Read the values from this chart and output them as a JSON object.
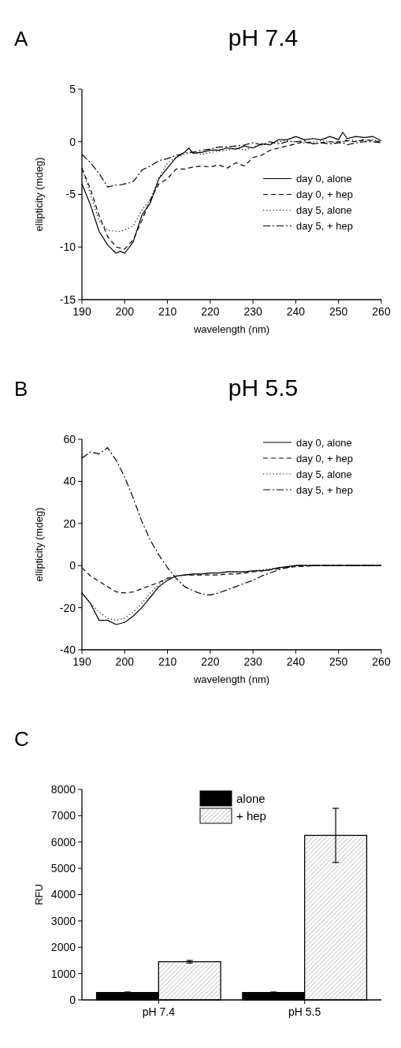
{
  "chart_data": [
    {
      "type": "line",
      "title": "pH 7.4",
      "xlabel": "wavelength (nm)",
      "ylabel": "ellipticity (mdeg)",
      "annotations": [
        "A"
      ],
      "x": [
        190,
        192,
        194,
        196,
        198,
        199,
        200,
        202,
        204,
        206,
        208,
        210,
        212,
        214,
        215,
        216,
        218,
        220,
        222,
        224,
        226,
        228,
        230,
        232,
        234,
        236,
        238,
        240,
        242,
        244,
        246,
        248,
        250,
        251,
        252,
        254,
        256,
        258,
        260
      ],
      "xlim": [
        190,
        260
      ],
      "xticks": [
        190,
        200,
        210,
        220,
        230,
        240,
        250,
        260
      ],
      "ylim": [
        -15,
        5
      ],
      "yticks": [
        -15,
        -10,
        -5,
        0,
        5
      ],
      "legend": "right",
      "marker": "none",
      "series": [
        {
          "name": "day 0, alone",
          "color": "#000000",
          "line_style": "solid",
          "values": [
            -4,
            -6,
            -8.5,
            -9.8,
            -10.6,
            -10.4,
            -10.6,
            -9.5,
            -7,
            -5.8,
            -3.5,
            -2.5,
            -1.5,
            -1,
            -0.6,
            -1.1,
            -1,
            -0.8,
            -0.8,
            -0.6,
            -0.7,
            -0.4,
            -0.6,
            -0.2,
            -0.3,
            0.2,
            0.2,
            0.5,
            0.2,
            0.3,
            0.2,
            0.5,
            0.2,
            0.9,
            0.3,
            0.5,
            0.4,
            0.5,
            0.1
          ]
        },
        {
          "name": "day 0, + hep",
          "color": "#000000",
          "line_style": "dashed",
          "values": [
            -2.5,
            -4.5,
            -7,
            -9,
            -10,
            -10.1,
            -10.2,
            -9.3,
            -7.5,
            -5.5,
            -4,
            -3.5,
            -2.6,
            -2.6,
            -2.5,
            -2.4,
            -2.3,
            -2.4,
            -2.2,
            -2.5,
            -2,
            -2.3,
            -1.5,
            -1.3,
            -0.8,
            -0.6,
            -0.4,
            -0.2,
            0,
            -0.2,
            -0.1,
            0,
            0,
            0,
            0.1,
            0,
            0.2,
            0.1,
            0
          ]
        },
        {
          "name": "day 5, alone",
          "color": "#000000",
          "line_style": "dotted",
          "values": [
            -2.5,
            -5,
            -7.5,
            -8.4,
            -8.5,
            -8.5,
            -8.4,
            -8,
            -6.5,
            -5.5,
            -3.5,
            -2,
            -1.5,
            -1.2,
            -1.1,
            -1,
            -1.2,
            -1,
            -0.9,
            -0.8,
            -0.6,
            -0.8,
            -0.5,
            -0.3,
            -0.2,
            0,
            0.1,
            0,
            -0.1,
            0,
            0.1,
            0,
            -0.1,
            0,
            0.2,
            0.1,
            0.1,
            0.2,
            0
          ]
        },
        {
          "name": "day 5, + hep",
          "color": "#000000",
          "line_style": "dashdot",
          "values": [
            -1.2,
            -2,
            -3,
            -4.3,
            -4.1,
            -4.1,
            -4,
            -3.8,
            -2.7,
            -2.3,
            -1.8,
            -1.6,
            -1.3,
            -1.1,
            -1,
            -1,
            -0.8,
            -0.7,
            -0.5,
            -0.5,
            -0.4,
            -0.3,
            -0.1,
            -0.3,
            0,
            -0.2,
            0,
            0,
            0.1,
            -0.2,
            -0.1,
            -0.2,
            -0.1,
            -0.1,
            -0.3,
            -0.1,
            0,
            0,
            -0.1
          ]
        }
      ]
    },
    {
      "type": "line",
      "title": "pH 5.5",
      "xlabel": "wavelength (nm)",
      "ylabel": "ellipticity (mdeg)",
      "annotations": [
        "B"
      ],
      "x": [
        190,
        192,
        194,
        196,
        198,
        200,
        202,
        204,
        206,
        208,
        210,
        212,
        214,
        216,
        218,
        220,
        222,
        224,
        226,
        228,
        230,
        232,
        234,
        236,
        238,
        240,
        245,
        250,
        255,
        260
      ],
      "xlim": [
        190,
        260
      ],
      "xticks": [
        190,
        200,
        210,
        220,
        230,
        240,
        250,
        260
      ],
      "ylim": [
        -40,
        60
      ],
      "yticks": [
        -40,
        -20,
        0,
        20,
        40,
        60
      ],
      "legend": "top right",
      "marker": "none",
      "series": [
        {
          "name": "day 0, alone",
          "color": "#000000",
          "line_style": "solid",
          "values": [
            -13,
            -18,
            -26,
            -26,
            -28,
            -27,
            -24,
            -20,
            -15,
            -10,
            -7,
            -5,
            -4.5,
            -4,
            -4,
            -3.5,
            -3.5,
            -3,
            -3,
            -3,
            -2.5,
            -2.5,
            -2,
            -1,
            -0.5,
            0,
            0,
            0,
            0,
            0
          ]
        },
        {
          "name": "day 0, + hep",
          "color": "#000000",
          "line_style": "dashed",
          "values": [
            -1,
            -5,
            -7.5,
            -10,
            -12.5,
            -13,
            -12.5,
            -11,
            -9.5,
            -8,
            -6,
            -5,
            -4.5,
            -4.5,
            -4.5,
            -4.5,
            -4.5,
            -4,
            -4,
            -3.5,
            -3,
            -2.5,
            -2,
            -1.5,
            -1,
            -0.5,
            0,
            0,
            0,
            0
          ]
        },
        {
          "name": "day 5, alone",
          "color": "#000000",
          "line_style": "dotted",
          "values": [
            -13,
            -18,
            -22,
            -25,
            -26,
            -25,
            -22,
            -18,
            -13,
            -9,
            -6,
            -5,
            -4.5,
            -4.5,
            -4,
            -3.5,
            -3.5,
            -3,
            -3,
            -3,
            -2.5,
            -2,
            -1.5,
            -1,
            -0.5,
            0,
            0,
            0,
            0,
            0
          ]
        },
        {
          "name": "day 5, + hep",
          "color": "#000000",
          "line_style": "dashdot",
          "values": [
            51,
            54,
            53,
            56,
            50,
            42,
            32,
            21,
            12,
            5,
            -1,
            -6,
            -10,
            -12,
            -13.5,
            -14,
            -13,
            -11.5,
            -10,
            -8.5,
            -7,
            -5,
            -3.5,
            -2,
            -1,
            0,
            0,
            0,
            0,
            0
          ]
        }
      ]
    },
    {
      "type": "bar",
      "ylabel": "RFU",
      "annotations": [
        "C"
      ],
      "categories": [
        "pH 7.4",
        "pH 5.5"
      ],
      "ylim": [
        0,
        8000
      ],
      "yticks": [
        0,
        1000,
        2000,
        3000,
        4000,
        5000,
        6000,
        7000,
        8000
      ],
      "legend": "top",
      "series": [
        {
          "name": "alone",
          "color": "#000000",
          "values": [
            280,
            280
          ],
          "errors": [
            20,
            20
          ]
        },
        {
          "name": "+ hep",
          "color": "#ffffff",
          "values": [
            1450,
            6250
          ],
          "errors": [
            50,
            1030
          ]
        }
      ]
    }
  ]
}
